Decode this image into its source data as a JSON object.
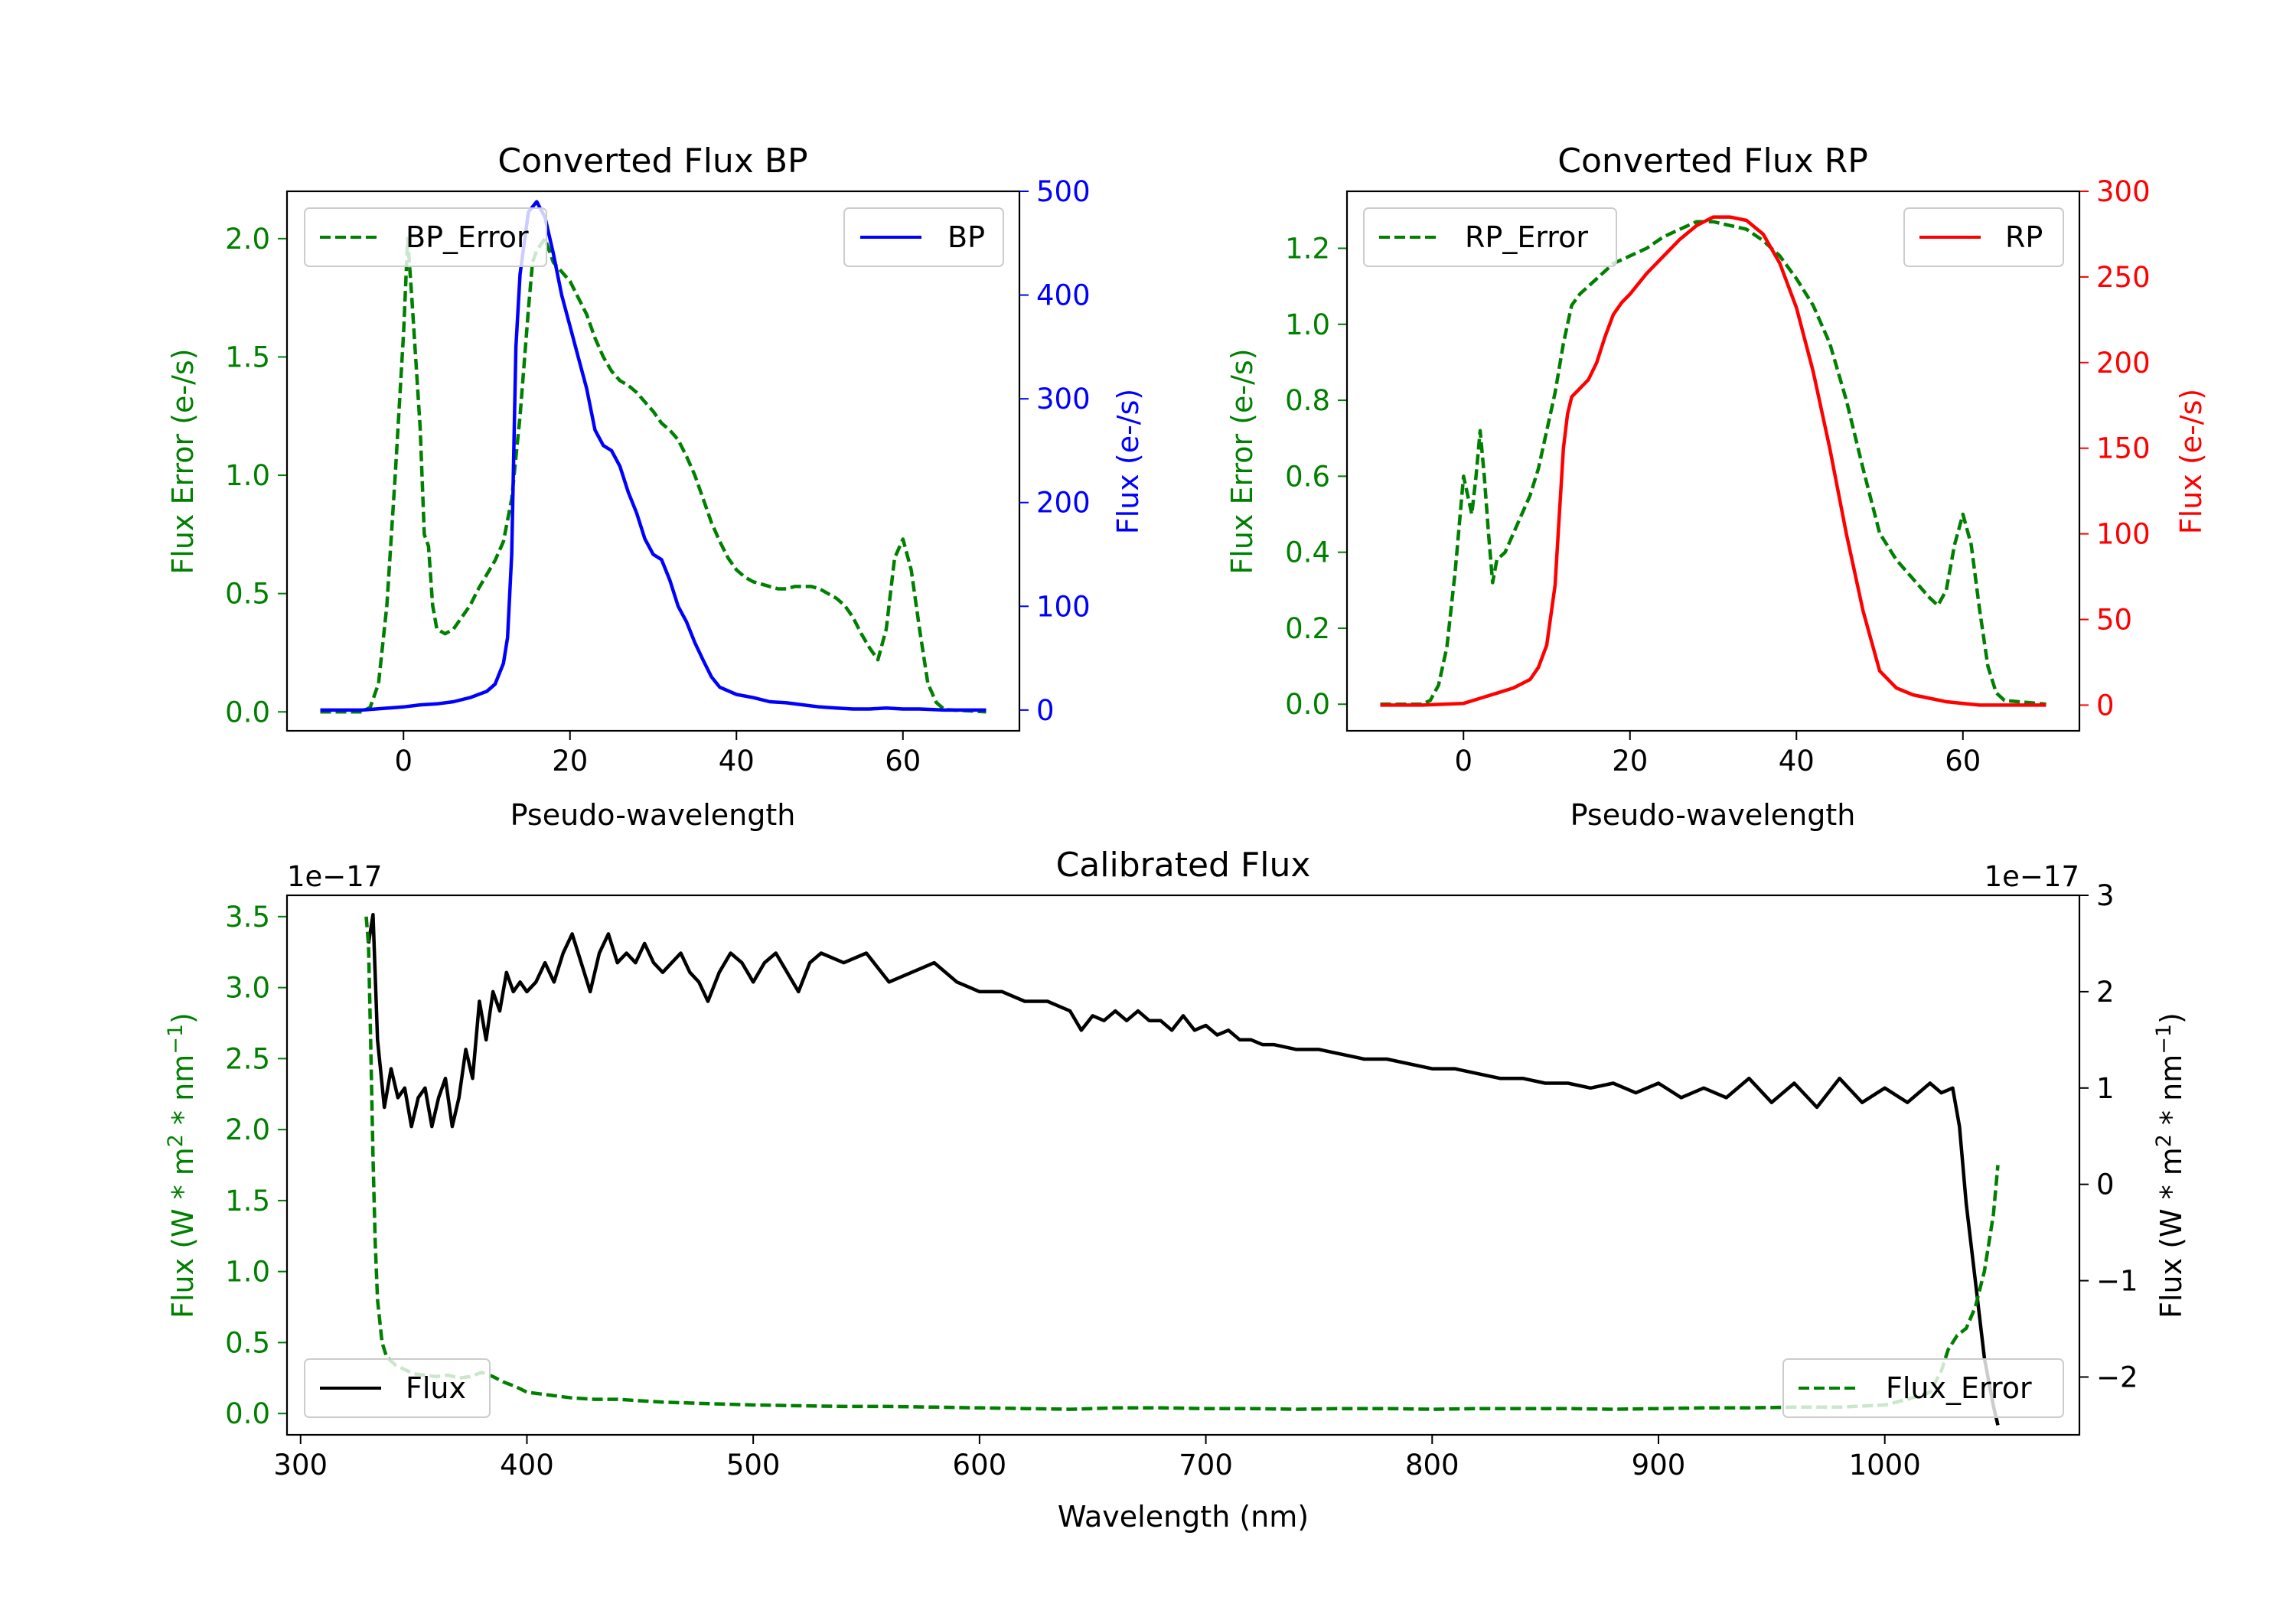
{
  "colors": {
    "green": "#008000",
    "blue": "#0000ff",
    "red": "#ff0000",
    "black": "#000000"
  },
  "chart_data": [
    {
      "type": "line",
      "title": "Converted Flux BP",
      "xlabel": "Pseudo-wavelength",
      "xlim": [
        -14,
        74
      ],
      "xticks": [
        "0",
        "20",
        "40",
        "60"
      ],
      "xtick_values": [
        0,
        20,
        40,
        60
      ],
      "left_axis": {
        "label": "Flux Error (e-/s)",
        "color": "#008000",
        "ylim": [
          -0.08,
          2.2
        ],
        "ticks": [
          "0.0",
          "0.5",
          "1.0",
          "1.5",
          "2.0"
        ],
        "tick_values": [
          0,
          0.5,
          1.0,
          1.5,
          2.0
        ]
      },
      "right_axis": {
        "label": "Flux (e-/s)",
        "color": "#0000ff",
        "ylim": [
          -20,
          500
        ],
        "ticks": [
          "0",
          "100",
          "200",
          "300",
          "400",
          "500"
        ],
        "tick_values": [
          0,
          100,
          200,
          300,
          400,
          500
        ]
      },
      "series": [
        {
          "name": "BP_Error",
          "axis": "left",
          "style": "dashed",
          "color": "#008000",
          "x": [
            -10,
            -5,
            -4,
            -3,
            -2,
            -1,
            0,
            0.5,
            1,
            2,
            2.5,
            3,
            3.5,
            4,
            5,
            6,
            7,
            8,
            9,
            10,
            11,
            12,
            13,
            14,
            15,
            15.5,
            16,
            17,
            18,
            19,
            20,
            21,
            22,
            23,
            24,
            25,
            26,
            27,
            28,
            29,
            30,
            31,
            32,
            33,
            34,
            35,
            36,
            37,
            38,
            39,
            40,
            41,
            42,
            43,
            44,
            45,
            46,
            47,
            48,
            49,
            50,
            51,
            52,
            53,
            54,
            55,
            56,
            57,
            58,
            59,
            60,
            61,
            62,
            63,
            64,
            65,
            70
          ],
          "values": [
            0,
            0,
            0.02,
            0.12,
            0.45,
            1.0,
            1.6,
            2.0,
            1.75,
            1.2,
            0.75,
            0.7,
            0.45,
            0.35,
            0.33,
            0.35,
            0.4,
            0.45,
            0.52,
            0.58,
            0.64,
            0.72,
            0.9,
            1.25,
            1.7,
            1.9,
            1.95,
            2.0,
            1.9,
            1.86,
            1.82,
            1.75,
            1.68,
            1.58,
            1.5,
            1.44,
            1.4,
            1.38,
            1.35,
            1.31,
            1.27,
            1.22,
            1.19,
            1.15,
            1.08,
            1.0,
            0.9,
            0.8,
            0.72,
            0.65,
            0.6,
            0.57,
            0.55,
            0.54,
            0.53,
            0.52,
            0.52,
            0.53,
            0.53,
            0.53,
            0.52,
            0.5,
            0.48,
            0.45,
            0.4,
            0.33,
            0.27,
            0.22,
            0.35,
            0.65,
            0.73,
            0.6,
            0.35,
            0.12,
            0.04,
            0.01,
            0
          ]
        },
        {
          "name": "BP",
          "axis": "right",
          "style": "solid",
          "color": "#0000ff",
          "x": [
            -10,
            -5,
            0,
            2,
            4,
            6,
            8,
            10,
            11,
            12,
            12.5,
            13,
            13.5,
            14,
            15,
            16,
            17,
            18,
            19,
            20,
            21,
            22,
            23,
            24,
            25,
            26,
            27,
            28,
            29,
            30,
            31,
            32,
            33,
            34,
            35,
            36,
            37,
            38,
            40,
            42,
            44,
            46,
            48,
            50,
            52,
            54,
            56,
            58,
            60,
            62,
            65,
            70
          ],
          "values": [
            0,
            0,
            3,
            5,
            6,
            8,
            12,
            18,
            25,
            45,
            70,
            150,
            350,
            420,
            480,
            490,
            475,
            440,
            400,
            370,
            340,
            310,
            270,
            255,
            250,
            235,
            210,
            190,
            165,
            150,
            145,
            125,
            100,
            85,
            65,
            48,
            32,
            22,
            15,
            12,
            8,
            7,
            5,
            3,
            2,
            1,
            1,
            2,
            1,
            1,
            0,
            0
          ]
        }
      ],
      "legend": [
        {
          "label": "BP_Error",
          "location": "upper-left"
        },
        {
          "label": "BP",
          "location": "upper-right"
        }
      ]
    },
    {
      "type": "line",
      "title": "Converted Flux RP",
      "xlabel": "Pseudo-wavelength",
      "xlim": [
        -14,
        74
      ],
      "xticks": [
        "0",
        "20",
        "40",
        "60"
      ],
      "xtick_values": [
        0,
        20,
        40,
        60
      ],
      "left_axis": {
        "label": "Flux Error (e-/s)",
        "color": "#008000",
        "ylim": [
          -0.07,
          1.35
        ],
        "ticks": [
          "0.0",
          "0.2",
          "0.4",
          "0.6",
          "0.8",
          "1.0",
          "1.2"
        ],
        "tick_values": [
          0,
          0.2,
          0.4,
          0.6,
          0.8,
          1.0,
          1.2
        ]
      },
      "right_axis": {
        "label": "Flux (e-/s)",
        "color": "#ff0000",
        "ylim": [
          -15,
          300
        ],
        "ticks": [
          "0",
          "50",
          "100",
          "150",
          "200",
          "250",
          "300"
        ],
        "tick_values": [
          0,
          50,
          100,
          150,
          200,
          250,
          300
        ]
      },
      "series": [
        {
          "name": "RP_Error",
          "axis": "left",
          "style": "dashed",
          "color": "#008000",
          "x": [
            -10,
            -5,
            -4,
            -3,
            -2,
            -1,
            0,
            0.5,
            1,
            1.5,
            2,
            2.5,
            3,
            3.5,
            4,
            5,
            6,
            7,
            8,
            9,
            10,
            11,
            12,
            13,
            14,
            15,
            16,
            17,
            18,
            19,
            20,
            22,
            24,
            26,
            28,
            30,
            32,
            34,
            36,
            38,
            40,
            42,
            44,
            46,
            48,
            50,
            52,
            54,
            56,
            57,
            58,
            59,
            60,
            61,
            62,
            63,
            64,
            65,
            70
          ],
          "values": [
            0,
            0,
            0.01,
            0.05,
            0.15,
            0.35,
            0.6,
            0.55,
            0.5,
            0.6,
            0.72,
            0.6,
            0.45,
            0.32,
            0.38,
            0.4,
            0.45,
            0.5,
            0.55,
            0.62,
            0.72,
            0.82,
            0.95,
            1.05,
            1.08,
            1.1,
            1.12,
            1.14,
            1.16,
            1.17,
            1.18,
            1.2,
            1.23,
            1.25,
            1.27,
            1.27,
            1.26,
            1.25,
            1.22,
            1.18,
            1.12,
            1.05,
            0.95,
            0.8,
            0.62,
            0.45,
            0.38,
            0.33,
            0.28,
            0.26,
            0.3,
            0.42,
            0.5,
            0.42,
            0.25,
            0.1,
            0.03,
            0.01,
            0
          ]
        },
        {
          "name": "RP",
          "axis": "right",
          "style": "solid",
          "color": "#ff0000",
          "x": [
            -10,
            -5,
            0,
            2,
            4,
            6,
            8,
            9,
            10,
            11,
            11.5,
            12,
            12.5,
            13,
            14,
            15,
            16,
            17,
            18,
            19,
            20,
            22,
            24,
            26,
            28,
            30,
            32,
            34,
            36,
            38,
            40,
            42,
            44,
            46,
            48,
            50,
            52,
            54,
            56,
            58,
            60,
            62,
            65,
            70
          ],
          "values": [
            0,
            0,
            1,
            4,
            7,
            10,
            15,
            22,
            35,
            70,
            110,
            150,
            170,
            180,
            185,
            190,
            200,
            215,
            228,
            235,
            240,
            252,
            262,
            272,
            280,
            285,
            285,
            283,
            275,
            258,
            232,
            195,
            150,
            100,
            55,
            20,
            10,
            6,
            4,
            2,
            1,
            0,
            0,
            0
          ]
        }
      ],
      "legend": [
        {
          "label": "RP_Error",
          "location": "upper-left"
        },
        {
          "label": "RP",
          "location": "upper-right"
        }
      ]
    },
    {
      "type": "line",
      "title": "Calibrated Flux",
      "xlabel": "Wavelength (nm)",
      "xlim": [
        294,
        1086
      ],
      "xticks": [
        "300",
        "400",
        "500",
        "600",
        "700",
        "800",
        "900",
        "1000"
      ],
      "xtick_values": [
        300,
        400,
        500,
        600,
        700,
        800,
        900,
        1000
      ],
      "left_axis": {
        "label": "Flux (W * m^2 * nm^-1)",
        "label_parts": [
          "Flux (W * m",
          "2",
          " * nm",
          "−1",
          ")"
        ],
        "color": "#008000",
        "offset_text": "1e−17",
        "ylim": [
          -0.15,
          3.65
        ],
        "ticks": [
          "0.0",
          "0.5",
          "1.0",
          "1.5",
          "2.0",
          "2.5",
          "3.0",
          "3.5"
        ],
        "tick_values": [
          0,
          0.5,
          1.0,
          1.5,
          2.0,
          2.5,
          3.0,
          3.5
        ]
      },
      "right_axis": {
        "label": "Flux (W * m^2 * nm^-1)",
        "label_parts": [
          "Flux (W * m",
          "2",
          " * nm",
          "−1",
          ")"
        ],
        "color": "#000000",
        "offset_text": "1e−17",
        "ylim": [
          -2.6,
          3.0
        ],
        "ticks": [
          "−2",
          "−1",
          "0",
          "1",
          "2",
          "3"
        ],
        "tick_values": [
          -2,
          -1,
          0,
          1,
          2,
          3
        ]
      },
      "series": [
        {
          "name": "Flux",
          "axis": "right",
          "style": "solid",
          "color": "#000000",
          "x": [
            330,
            332,
            334,
            337,
            340,
            343,
            346,
            349,
            352,
            355,
            358,
            361,
            364,
            367,
            370,
            373,
            376,
            379,
            382,
            385,
            388,
            391,
            394,
            397,
            400,
            404,
            408,
            412,
            416,
            420,
            424,
            428,
            432,
            436,
            440,
            444,
            448,
            452,
            456,
            460,
            464,
            468,
            472,
            476,
            480,
            485,
            490,
            495,
            500,
            505,
            510,
            515,
            520,
            525,
            530,
            540,
            550,
            560,
            570,
            580,
            590,
            600,
            610,
            620,
            630,
            640,
            645,
            650,
            655,
            660,
            665,
            670,
            675,
            680,
            685,
            690,
            695,
            700,
            705,
            710,
            715,
            720,
            725,
            730,
            740,
            750,
            760,
            770,
            780,
            790,
            800,
            810,
            820,
            830,
            840,
            850,
            860,
            870,
            880,
            890,
            900,
            910,
            920,
            930,
            940,
            950,
            960,
            970,
            980,
            990,
            1000,
            1010,
            1020,
            1025,
            1030,
            1033,
            1036,
            1040,
            1044,
            1048,
            1050
          ],
          "values": [
            2.5,
            2.8,
            1.5,
            0.8,
            1.2,
            0.9,
            1.0,
            0.6,
            0.9,
            1.0,
            0.6,
            0.9,
            1.1,
            0.6,
            0.9,
            1.4,
            1.1,
            1.9,
            1.5,
            2.0,
            1.8,
            2.2,
            2.0,
            2.1,
            2.0,
            2.1,
            2.3,
            2.1,
            2.4,
            2.6,
            2.3,
            2.0,
            2.4,
            2.6,
            2.3,
            2.4,
            2.3,
            2.5,
            2.3,
            2.2,
            2.3,
            2.4,
            2.2,
            2.1,
            1.9,
            2.2,
            2.4,
            2.3,
            2.1,
            2.3,
            2.4,
            2.2,
            2.0,
            2.3,
            2.4,
            2.3,
            2.4,
            2.1,
            2.2,
            2.3,
            2.1,
            2.0,
            2.0,
            1.9,
            1.9,
            1.8,
            1.6,
            1.75,
            1.7,
            1.8,
            1.7,
            1.8,
            1.7,
            1.7,
            1.6,
            1.75,
            1.6,
            1.65,
            1.55,
            1.6,
            1.5,
            1.5,
            1.45,
            1.45,
            1.4,
            1.4,
            1.35,
            1.3,
            1.3,
            1.25,
            1.2,
            1.2,
            1.15,
            1.1,
            1.1,
            1.05,
            1.05,
            1.0,
            1.05,
            0.95,
            1.05,
            0.9,
            1.0,
            0.9,
            1.1,
            0.85,
            1.05,
            0.8,
            1.1,
            0.85,
            1.0,
            0.85,
            1.05,
            0.95,
            1.0,
            0.6,
            -0.2,
            -1.0,
            -1.8,
            -2.3,
            -2.5
          ]
        },
        {
          "name": "Flux_Error",
          "axis": "left",
          "style": "dashed",
          "color": "#008000",
          "x": [
            329,
            330,
            331,
            332,
            333,
            334,
            336,
            338,
            342,
            346,
            350,
            355,
            360,
            365,
            370,
            375,
            380,
            385,
            390,
            395,
            400,
            405,
            410,
            420,
            430,
            440,
            450,
            460,
            480,
            500,
            520,
            540,
            560,
            580,
            600,
            620,
            640,
            660,
            680,
            700,
            720,
            740,
            760,
            780,
            800,
            820,
            840,
            860,
            880,
            900,
            920,
            940,
            960,
            980,
            1000,
            1010,
            1020,
            1025,
            1028,
            1032,
            1036,
            1040,
            1044,
            1048,
            1050
          ],
          "values": [
            3.5,
            3.3,
            2.6,
            1.8,
            1.2,
            0.8,
            0.5,
            0.4,
            0.34,
            0.31,
            0.28,
            0.27,
            0.26,
            0.27,
            0.25,
            0.26,
            0.29,
            0.26,
            0.22,
            0.19,
            0.15,
            0.14,
            0.13,
            0.11,
            0.1,
            0.1,
            0.09,
            0.08,
            0.07,
            0.06,
            0.055,
            0.05,
            0.05,
            0.045,
            0.04,
            0.035,
            0.03,
            0.04,
            0.04,
            0.035,
            0.035,
            0.03,
            0.035,
            0.035,
            0.03,
            0.035,
            0.035,
            0.035,
            0.03,
            0.035,
            0.04,
            0.04,
            0.045,
            0.045,
            0.06,
            0.1,
            0.15,
            0.3,
            0.45,
            0.55,
            0.6,
            0.75,
            1.0,
            1.4,
            1.75
          ]
        }
      ],
      "legend": [
        {
          "label": "Flux",
          "location": "lower-left"
        },
        {
          "label": "Flux_Error",
          "location": "lower-right"
        }
      ]
    }
  ]
}
